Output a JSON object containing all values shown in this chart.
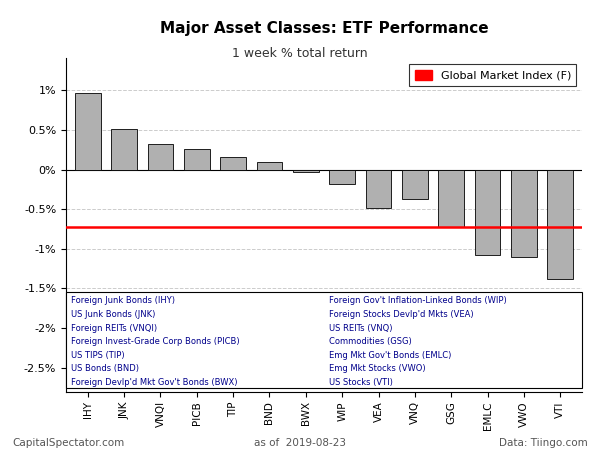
{
  "title": "Major Asset Classes: ETF Performance",
  "subtitle": "1 week % total return",
  "categories": [
    "IHY",
    "JNK",
    "VNQI",
    "PICB",
    "TIP",
    "BND",
    "BWX",
    "WIP",
    "VEA",
    "VNQ",
    "GSG",
    "EMLC",
    "VWO",
    "VTI"
  ],
  "values": [
    0.968,
    0.516,
    0.32,
    0.262,
    0.157,
    0.098,
    -0.03,
    -0.185,
    -0.49,
    -0.37,
    -0.72,
    -1.08,
    -1.1,
    -1.38
  ],
  "gmi_value": -0.72,
  "bar_color": "#b0b0b0",
  "bar_edge_color": "#000000",
  "gmi_line_color": "#ff0000",
  "grid_color": "#cccccc",
  "background_color": "#ffffff",
  "legend_labels_left": [
    "Foreign Junk Bonds (IHY)",
    "US Junk Bonds (JNK)",
    "Foreign REITs (VNQI)",
    "Foreign Invest-Grade Corp Bonds (PICB)",
    "US TIPS (TIP)",
    "US Bonds (BND)",
    "Foreign Devlp'd Mkt Gov't Bonds (BWX)"
  ],
  "legend_labels_right": [
    "Foreign Gov't Inflation-Linked Bonds (WIP)",
    "Foreign Stocks Devlp'd Mkts (VEA)",
    "US REITs (VNQ)",
    "Commodities (GSG)",
    "Emg Mkt Gov't Bonds (EMLC)",
    "Emg Mkt Stocks (VWO)",
    "US Stocks (VTI)"
  ],
  "footer_left": "CapitalSpectator.com",
  "footer_center": "as of  2019-08-23",
  "footer_right": "Data: Tiingo.com",
  "ylim": [
    -2.8,
    1.4
  ],
  "yticks": [
    -2.5,
    -2.0,
    -1.5,
    -1.0,
    -0.5,
    0.0,
    0.5,
    1.0
  ]
}
